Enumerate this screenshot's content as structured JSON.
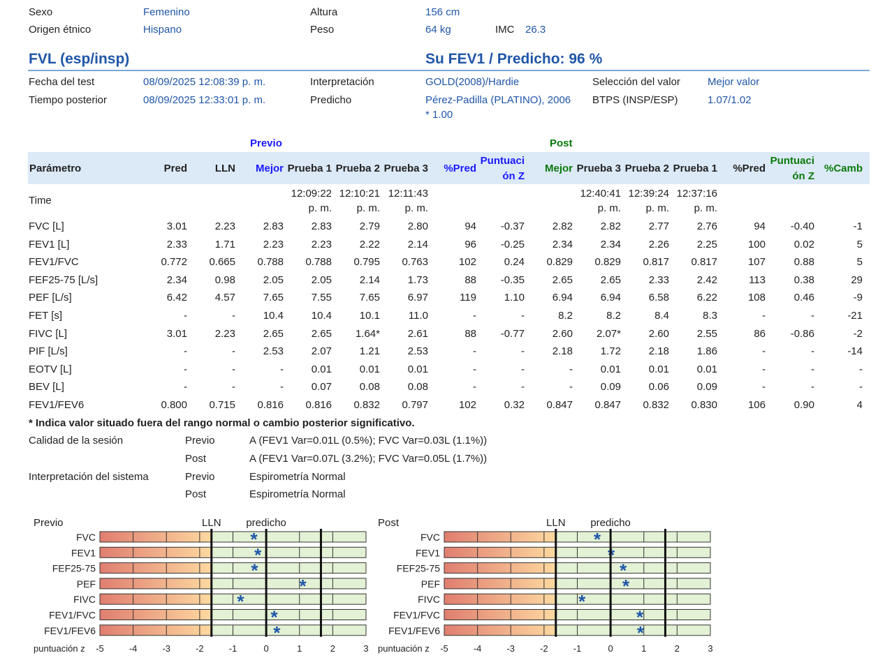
{
  "patient": {
    "sexo_label": "Sexo",
    "sexo": "Femenino",
    "origen_label": "Origen étnico",
    "origen": "Hispano",
    "altura_label": "Altura",
    "altura": "156 cm",
    "peso_label": "Peso",
    "peso": "64 kg",
    "imc_label": "IMC",
    "imc": "26.3"
  },
  "section": {
    "title": "FVL (esp/insp)",
    "fev1_pred": "Su FEV1 / Predicho: 96 %"
  },
  "test": {
    "fecha_label": "Fecha del test",
    "fecha": "08/09/2025 12:08:39 p. m.",
    "tiempo_label": "Tiempo posterior",
    "tiempo": "08/09/2025 12:33:01 p. m.",
    "interp_label": "Interpretación",
    "interp": "GOLD(2008)/Hardie",
    "pred_label": "Predicho",
    "pred_line1": "Pérez-Padilla (PLATINO), 2006",
    "pred_line2": "* 1.00",
    "sel_label": "Selección del valor",
    "sel": "Mejor valor",
    "btps_label": "BTPS (INSP/ESP)",
    "btps": "1.07/1.02"
  },
  "table": {
    "group_pre": "Previo",
    "group_post": "Post",
    "headers": [
      "Parámetro",
      "Pred",
      "LLN",
      "Mejor",
      "Prueba 1",
      "Prueba 2",
      "Prueba 3",
      "%Pred",
      "Puntuaci",
      "ón Z",
      "Mejor",
      "Prueba 3",
      "Prueba 2",
      "Prueba 1",
      "%Pred",
      "Puntuaci",
      "ón Z",
      "%Camb"
    ],
    "time_label": "Time",
    "time_pre": [
      [
        "12:09:22",
        "p. m."
      ],
      [
        "12:10:21",
        "p. m."
      ],
      [
        "12:11:43",
        "p. m."
      ]
    ],
    "time_post": [
      [
        "12:40:41",
        "p. m."
      ],
      [
        "12:39:24",
        "p. m."
      ],
      [
        "12:37:16",
        "p. m."
      ]
    ],
    "rows": [
      [
        "FVC [L]",
        "3.01",
        "2.23",
        "2.83",
        "2.83",
        "2.79",
        "2.80",
        "94",
        "-0.37",
        "2.82",
        "2.82",
        "2.77",
        "2.76",
        "94",
        "-0.40",
        "-1"
      ],
      [
        "FEV1 [L]",
        "2.33",
        "1.71",
        "2.23",
        "2.23",
        "2.22",
        "2.14",
        "96",
        "-0.25",
        "2.34",
        "2.34",
        "2.26",
        "2.25",
        "100",
        "0.02",
        "5"
      ],
      [
        "FEV1/FVC",
        "0.772",
        "0.665",
        "0.788",
        "0.788",
        "0.795",
        "0.763",
        "102",
        "0.24",
        "0.829",
        "0.829",
        "0.817",
        "0.817",
        "107",
        "0.88",
        "5"
      ],
      [
        "FEF25-75 [L/s]",
        "2.34",
        "0.98",
        "2.05",
        "2.05",
        "2.14",
        "1.73",
        "88",
        "-0.35",
        "2.65",
        "2.65",
        "2.33",
        "2.42",
        "113",
        "0.38",
        "29"
      ],
      [
        "PEF [L/s]",
        "6.42",
        "4.57",
        "7.65",
        "7.55",
        "7.65",
        "6.97",
        "119",
        "1.10",
        "6.94",
        "6.94",
        "6.58",
        "6.22",
        "108",
        "0.46",
        "-9"
      ],
      [
        "FET [s]",
        "-",
        "-",
        "10.4",
        "10.4",
        "10.1",
        "11.0",
        "-",
        "-",
        "8.2",
        "8.2",
        "8.4",
        "8.3",
        "-",
        "-",
        "-21"
      ],
      [
        "FIVC [L]",
        "3.01",
        "2.23",
        "2.65",
        "2.65",
        "1.64*",
        "2.61",
        "88",
        "-0.77",
        "2.60",
        "2.07*",
        "2.60",
        "2.55",
        "86",
        "-0.86",
        "-2"
      ],
      [
        "PIF [L/s]",
        "-",
        "-",
        "2.53",
        "2.07",
        "1.21",
        "2.53",
        "-",
        "-",
        "2.18",
        "1.72",
        "2.18",
        "1.86",
        "-",
        "-",
        "-14"
      ],
      [
        "EOTV [L]",
        "-",
        "-",
        "-",
        "0.01",
        "0.01",
        "0.01",
        "-",
        "-",
        "-",
        "0.01",
        "0.01",
        "0.01",
        "-",
        "-",
        "-"
      ],
      [
        "BEV [L]",
        "-",
        "-",
        "-",
        "0.07",
        "0.08",
        "0.08",
        "-",
        "-",
        "-",
        "0.09",
        "0.06",
        "0.09",
        "-",
        "-",
        "-"
      ],
      [
        "FEV1/FEV6",
        "0.800",
        "0.715",
        "0.816",
        "0.816",
        "0.832",
        "0.797",
        "102",
        "0.32",
        "0.847",
        "0.847",
        "0.832",
        "0.830",
        "106",
        "0.90",
        "4"
      ]
    ]
  },
  "footnote": "* Indica valor situado fuera del rango normal o cambio posterior significativo.",
  "quality": {
    "calidad_label": "Calidad de la sesión",
    "interp_label": "Interpretación del sistema",
    "previo": "Previo",
    "post": "Post",
    "calidad_pre": "A (FEV1 Var=0.01L (0.5%); FVC Var=0.03L (1.1%))",
    "calidad_post": "A (FEV1 Var=0.07L (3.2%); FVC Var=0.05L (1.7%))",
    "interp_pre": "Espirometría Normal",
    "interp_post": "Espirometría Normal"
  },
  "chart_data": [
    {
      "type": "scatter",
      "title": "Previo",
      "lln_label": "LLN",
      "pred_label": "predicho",
      "xlabel": "puntuación z",
      "xlim": [
        -5,
        3
      ],
      "lln_z": -1.645,
      "upper_z": 1.645,
      "ticks": [
        "-5",
        "-4",
        "-3",
        "-2",
        "-1",
        "0",
        "1",
        "2",
        "3"
      ],
      "categories": [
        "FVC",
        "FEV1",
        "FEF25-75",
        "PEF",
        "FIVC",
        "FEV1/FVC",
        "FEV1/FEV6"
      ],
      "values": [
        -0.37,
        -0.25,
        -0.35,
        1.1,
        -0.77,
        0.24,
        0.32
      ],
      "colors": {
        "low_start": "#e07e70",
        "low_end": "#fdd9a0",
        "normal": "#e3f1d4",
        "marker": "#1f56a8"
      }
    },
    {
      "type": "scatter",
      "title": "Post",
      "lln_label": "LLN",
      "pred_label": "predicho",
      "xlabel": "puntuación z",
      "xlim": [
        -5,
        3
      ],
      "lln_z": -1.645,
      "upper_z": 1.645,
      "ticks": [
        "-5",
        "-4",
        "-3",
        "-2",
        "-1",
        "0",
        "1",
        "2",
        "3"
      ],
      "categories": [
        "FVC",
        "FEV1",
        "FEF25-75",
        "PEF",
        "FIVC",
        "FEV1/FVC",
        "FEV1/FEV6"
      ],
      "values": [
        -0.4,
        0.02,
        0.38,
        0.46,
        -0.86,
        0.88,
        0.9
      ],
      "colors": {
        "low_start": "#e07e70",
        "low_end": "#fdd9a0",
        "normal": "#e3f1d4",
        "marker": "#1f56a8"
      }
    }
  ]
}
